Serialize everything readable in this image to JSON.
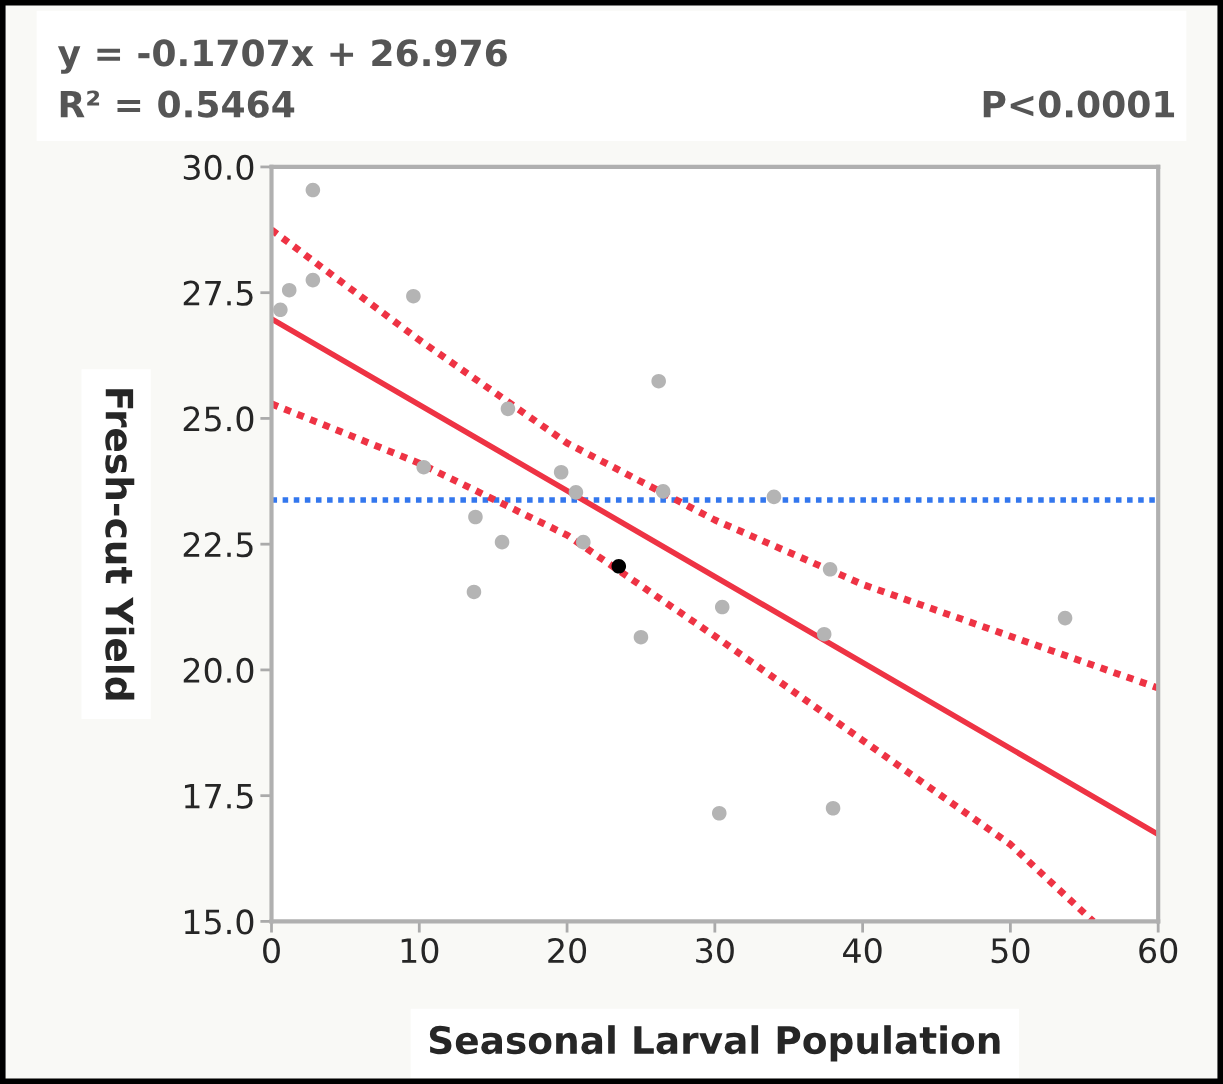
{
  "chart_data": {
    "type": "scatter",
    "xlabel": "Seasonal Larval Population",
    "ylabel": "Fresh-cut Yield",
    "annotations": [
      "y = -0.1707x + 26.976",
      "R² = 0.5464",
      "P<0.0001"
    ],
    "xlim": [
      0,
      60
    ],
    "xticks": [
      0,
      10,
      20,
      30,
      40,
      50,
      60
    ],
    "ylim": [
      15,
      30
    ],
    "yticks": [
      {
        "value": 15,
        "label": "15.0"
      },
      {
        "value": 17.5,
        "label": "17.5"
      },
      {
        "value": 20,
        "label": "20.0"
      },
      {
        "value": 22.5,
        "label": "22.5"
      },
      {
        "value": 25,
        "label": "25.0"
      },
      {
        "value": 27.5,
        "label": "27.5"
      },
      {
        "value": 30,
        "label": "30.0"
      }
    ],
    "grid": false,
    "ref_lines": [
      {
        "axis": "y",
        "value": 23.38,
        "color": "#3377ee",
        "line_style": "dotted"
      }
    ],
    "series": [
      {
        "marker": "circle",
        "x": [
          0.6,
          1.2,
          2.8,
          2.8,
          9.6,
          10.3,
          13.8,
          13.7,
          15.6,
          16.0,
          19.6,
          20.6,
          21.1,
          23.5,
          25.0,
          26.2,
          26.5,
          30.5,
          30.3,
          34.0,
          37.8,
          37.4,
          38.0,
          53.7
        ],
        "values": [
          27.16,
          27.55,
          29.54,
          27.75,
          27.43,
          24.03,
          23.04,
          21.55,
          22.54,
          25.19,
          23.93,
          23.53,
          22.54,
          22.06,
          20.65,
          25.74,
          23.55,
          21.25,
          17.15,
          23.44,
          22.0,
          20.71,
          17.25,
          21.03
        ],
        "colors": [
          "#b4b4b4",
          "#b4b4b4",
          "#b4b4b4",
          "#b4b4b4",
          "#b4b4b4",
          "#b4b4b4",
          "#b4b4b4",
          "#b4b4b4",
          "#b4b4b4",
          "#b4b4b4",
          "#b4b4b4",
          "#b4b4b4",
          "#b4b4b4",
          "#000000",
          "#b4b4b4",
          "#b4b4b4",
          "#b4b4b4",
          "#b4b4b4",
          "#b4b4b4",
          "#b4b4b4",
          "#b4b4b4",
          "#b4b4b4",
          "#b4b4b4",
          "#b4b4b4"
        ]
      },
      {
        "type": "line",
        "line_style": "solid",
        "color": "#ee3344",
        "x": [
          0,
          60
        ],
        "values": [
          26.98,
          16.73
        ]
      },
      {
        "type": "line",
        "line_style": "dotted",
        "color": "#ee3344",
        "x": [
          0,
          10,
          20,
          30,
          40,
          50,
          60
        ],
        "values": [
          28.75,
          26.56,
          24.51,
          22.98,
          21.7,
          20.67,
          19.64
        ]
      },
      {
        "type": "line",
        "line_style": "dotted",
        "color": "#ee3344",
        "x": [
          0,
          10,
          20,
          30,
          40,
          50,
          55.6
        ],
        "values": [
          25.29,
          24.11,
          22.68,
          20.67,
          18.6,
          16.53,
          15.0
        ]
      }
    ]
  }
}
